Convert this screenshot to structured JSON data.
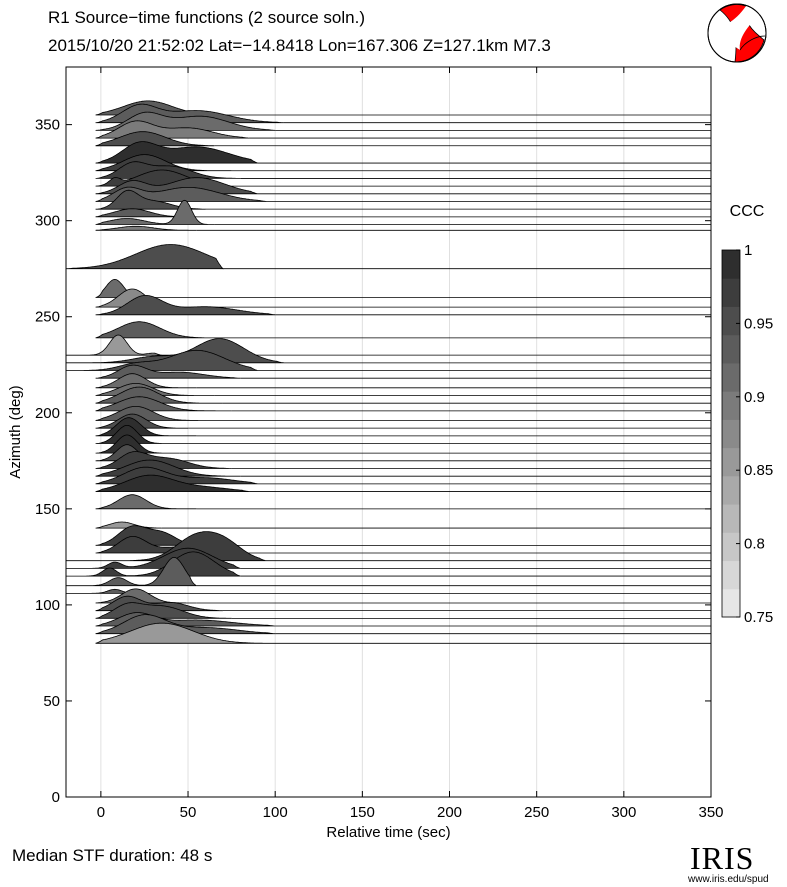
{
  "header": {
    "title": "R1 Source−time functions (2 source soln.)",
    "event": "2015/10/20 21:52:02   Lat=−14.8418 Lon=167.306   Z=127.1km   M7.3"
  },
  "footer": {
    "median": "Median STF duration: 48 s",
    "logo": "IRIS",
    "url": "www.iris.edu/spud"
  },
  "colors": {
    "ccc_low": "#e6e6e6",
    "ccc_high": "#2e2e2e",
    "grid": "#e0e0e0",
    "axis": "#000000"
  },
  "chart_data": {
    "type": "area",
    "xlabel": "Relative time (sec)",
    "ylabel": "Azimuth (deg)",
    "xlim": [
      -20,
      350
    ],
    "ylim": [
      0,
      380
    ],
    "xticks": [
      0,
      50,
      100,
      150,
      200,
      250,
      300,
      350
    ],
    "yticks": [
      0,
      50,
      100,
      150,
      200,
      250,
      300,
      350
    ],
    "grid": "vertical",
    "colorbar": {
      "label": "CCC",
      "range": [
        0.75,
        1.0
      ],
      "ticks": [
        0.75,
        0.8,
        0.85,
        0.9,
        0.95,
        1
      ],
      "tick_labels": [
        "0.75",
        "0.8",
        "0.85",
        "0.9",
        "0.95",
        "1"
      ],
      "steps": 13
    },
    "traces": [
      {
        "azimuth": 355,
        "ccc": 0.93,
        "t0": -3,
        "t1": 60,
        "bumps": [
          [
            27,
            7,
            14
          ]
        ]
      },
      {
        "azimuth": 351,
        "ccc": 0.93,
        "t0": -3,
        "t1": 105,
        "bumps": [
          [
            22,
            8,
            10
          ],
          [
            55,
            6,
            18
          ]
        ]
      },
      {
        "azimuth": 347,
        "ccc": 0.91,
        "t0": -3,
        "t1": 100,
        "bumps": [
          [
            25,
            8,
            10
          ],
          [
            57,
            7,
            16
          ]
        ]
      },
      {
        "azimuth": 343,
        "ccc": 0.9,
        "t0": -3,
        "t1": 85,
        "bumps": [
          [
            20,
            8,
            10
          ],
          [
            50,
            5,
            14
          ]
        ]
      },
      {
        "azimuth": 339,
        "ccc": 0.95,
        "t0": -3,
        "t1": 65,
        "bumps": [
          [
            24,
            7,
            13
          ]
        ]
      },
      {
        "azimuth": 330,
        "ccc": 0.99,
        "t0": -3,
        "t1": 90,
        "bumps": [
          [
            22,
            9,
            10
          ],
          [
            55,
            8,
            18
          ]
        ]
      },
      {
        "azimuth": 326,
        "ccc": 0.97,
        "t0": -3,
        "t1": 75,
        "bumps": [
          [
            25,
            8,
            12
          ]
        ]
      },
      {
        "azimuth": 322,
        "ccc": 0.98,
        "t0": -3,
        "t1": 80,
        "bumps": [
          [
            18,
            7,
            8
          ],
          [
            40,
            6,
            12
          ]
        ]
      },
      {
        "azimuth": 318,
        "ccc": 0.97,
        "t0": -3,
        "t1": 75,
        "bumps": [
          [
            8,
            3,
            3
          ],
          [
            35,
            8,
            14
          ]
        ]
      },
      {
        "azimuth": 314,
        "ccc": 0.95,
        "t0": -3,
        "t1": 90,
        "bumps": [
          [
            18,
            6,
            8
          ],
          [
            55,
            8,
            16
          ]
        ]
      },
      {
        "azimuth": 310,
        "ccc": 0.94,
        "t0": -3,
        "t1": 95,
        "bumps": [
          [
            15,
            6,
            8
          ],
          [
            50,
            7,
            18
          ]
        ]
      },
      {
        "azimuth": 306,
        "ccc": 0.95,
        "t0": -3,
        "t1": 60,
        "bumps": [
          [
            15,
            8,
            6
          ],
          [
            30,
            4,
            10
          ]
        ]
      },
      {
        "azimuth": 302,
        "ccc": 0.93,
        "t0": -3,
        "t1": 55,
        "bumps": [
          [
            18,
            4,
            10
          ]
        ]
      },
      {
        "azimuth": 298,
        "ccc": 0.92,
        "t0": -3,
        "t1": 65,
        "bumps": [
          [
            15,
            3,
            10
          ],
          [
            48,
            12,
            4
          ]
        ]
      },
      {
        "azimuth": 295,
        "ccc": 0.9,
        "t0": -3,
        "t1": 55,
        "bumps": [
          [
            20,
            2,
            10
          ]
        ]
      },
      {
        "azimuth": 275,
        "ccc": 0.96,
        "t0": -20,
        "t1": 70,
        "bumps": [
          [
            40,
            12,
            20
          ]
        ]
      },
      {
        "azimuth": 260,
        "ccc": 0.91,
        "t0": -3,
        "t1": 25,
        "bumps": [
          [
            8,
            9,
            5
          ]
        ]
      },
      {
        "azimuth": 255,
        "ccc": 0.87,
        "t0": -3,
        "t1": 45,
        "bumps": [
          [
            18,
            9,
            8
          ]
        ]
      },
      {
        "azimuth": 251,
        "ccc": 0.95,
        "t0": -3,
        "t1": 100,
        "bumps": [
          [
            25,
            9,
            10
          ],
          [
            60,
            4,
            18
          ]
        ]
      },
      {
        "azimuth": 239,
        "ccc": 0.93,
        "t0": -3,
        "t1": 60,
        "bumps": [
          [
            22,
            8,
            12
          ]
        ]
      },
      {
        "azimuth": 230,
        "ccc": 0.86,
        "t0": -20,
        "t1": 35,
        "bumps": [
          [
            10,
            10,
            5
          ],
          [
            30,
            1,
            4
          ]
        ]
      },
      {
        "azimuth": 226,
        "ccc": 0.95,
        "t0": -20,
        "t1": 105,
        "bumps": [
          [
            30,
            3,
            12
          ],
          [
            68,
            12,
            14
          ]
        ]
      },
      {
        "azimuth": 222,
        "ccc": 0.96,
        "t0": -20,
        "t1": 90,
        "bumps": [
          [
            20,
            3,
            10
          ],
          [
            55,
            10,
            16
          ]
        ]
      },
      {
        "azimuth": 218,
        "ccc": 0.93,
        "t0": -3,
        "t1": 80,
        "bumps": [
          [
            18,
            6,
            8
          ],
          [
            45,
            3,
            14
          ]
        ]
      },
      {
        "azimuth": 213,
        "ccc": 0.92,
        "t0": -3,
        "t1": 55,
        "bumps": [
          [
            18,
            7,
            8
          ]
        ]
      },
      {
        "azimuth": 209,
        "ccc": 0.92,
        "t0": -3,
        "t1": 65,
        "bumps": [
          [
            20,
            6,
            10
          ]
        ]
      },
      {
        "azimuth": 205,
        "ccc": 0.94,
        "t0": -3,
        "t1": 70,
        "bumps": [
          [
            22,
            8,
            11
          ]
        ]
      },
      {
        "azimuth": 201,
        "ccc": 0.93,
        "t0": -3,
        "t1": 75,
        "bumps": [
          [
            22,
            7,
            12
          ]
        ]
      },
      {
        "azimuth": 196,
        "ccc": 0.94,
        "t0": -3,
        "t1": 60,
        "bumps": [
          [
            20,
            7,
            10
          ]
        ]
      },
      {
        "azimuth": 192,
        "ccc": 0.95,
        "t0": -3,
        "t1": 50,
        "bumps": [
          [
            18,
            7,
            8
          ]
        ]
      },
      {
        "azimuth": 188,
        "ccc": 0.99,
        "t0": -3,
        "t1": 55,
        "bumps": [
          [
            16,
            9,
            7
          ]
        ]
      },
      {
        "azimuth": 184,
        "ccc": 0.99,
        "t0": -3,
        "t1": 50,
        "bumps": [
          [
            15,
            9,
            6
          ]
        ]
      },
      {
        "azimuth": 179,
        "ccc": 1.0,
        "t0": -3,
        "t1": 45,
        "bumps": [
          [
            15,
            9,
            6
          ]
        ]
      },
      {
        "azimuth": 175,
        "ccc": 0.96,
        "t0": -3,
        "t1": 50,
        "bumps": [
          [
            15,
            8,
            6
          ]
        ]
      },
      {
        "azimuth": 171,
        "ccc": 0.97,
        "t0": -3,
        "t1": 75,
        "bumps": [
          [
            18,
            7,
            8
          ],
          [
            38,
            5,
            12
          ]
        ]
      },
      {
        "azimuth": 167,
        "ccc": 0.98,
        "t0": -3,
        "t1": 80,
        "bumps": [
          [
            28,
            8,
            14
          ]
        ]
      },
      {
        "azimuth": 163,
        "ccc": 0.98,
        "t0": -3,
        "t1": 90,
        "bumps": [
          [
            25,
            8,
            12
          ],
          [
            60,
            3,
            16
          ]
        ]
      },
      {
        "azimuth": 159,
        "ccc": 0.99,
        "t0": -3,
        "t1": 85,
        "bumps": [
          [
            28,
            8,
            14
          ],
          [
            60,
            2,
            14
          ]
        ]
      },
      {
        "azimuth": 150,
        "ccc": 0.92,
        "t0": -3,
        "t1": 55,
        "bumps": [
          [
            18,
            7,
            8
          ]
        ]
      },
      {
        "azimuth": 140,
        "ccc": 0.86,
        "t0": -3,
        "t1": 35,
        "bumps": [
          [
            12,
            3,
            7
          ]
        ]
      },
      {
        "azimuth": 131,
        "ccc": 0.98,
        "t0": -3,
        "t1": 55,
        "bumps": [
          [
            18,
            9,
            8
          ],
          [
            35,
            6,
            8
          ]
        ]
      },
      {
        "azimuth": 127,
        "ccc": 0.98,
        "t0": -3,
        "t1": 75,
        "bumps": [
          [
            18,
            8,
            8
          ],
          [
            45,
            3,
            12
          ]
        ]
      },
      {
        "azimuth": 123,
        "ccc": 0.98,
        "t0": -20,
        "t1": 95,
        "bumps": [
          [
            55,
            12,
            12
          ],
          [
            72,
            7,
            10
          ]
        ]
      },
      {
        "azimuth": 119,
        "ccc": 0.97,
        "t0": -20,
        "t1": 80,
        "bumps": [
          [
            8,
            3,
            4
          ],
          [
            50,
            10,
            14
          ]
        ]
      },
      {
        "azimuth": 115,
        "ccc": 0.97,
        "t0": -20,
        "t1": 80,
        "bumps": [
          [
            5,
            4,
            4
          ],
          [
            53,
            12,
            12
          ]
        ]
      },
      {
        "azimuth": 110,
        "ccc": 0.94,
        "t0": -20,
        "t1": 55,
        "bumps": [
          [
            10,
            4,
            5
          ],
          [
            42,
            14,
            6
          ]
        ]
      },
      {
        "azimuth": 106,
        "ccc": 0.93,
        "t0": -20,
        "t1": 30,
        "bumps": [
          [
            8,
            2,
            4
          ]
        ]
      },
      {
        "azimuth": 101,
        "ccc": 0.92,
        "t0": -3,
        "t1": 55,
        "bumps": [
          [
            20,
            7,
            8
          ]
        ]
      },
      {
        "azimuth": 97,
        "ccc": 0.95,
        "t0": -3,
        "t1": 70,
        "bumps": [
          [
            15,
            7,
            8
          ],
          [
            40,
            4,
            10
          ]
        ]
      },
      {
        "azimuth": 93,
        "ccc": 0.95,
        "t0": -3,
        "t1": 75,
        "bumps": [
          [
            15,
            6,
            8
          ],
          [
            35,
            6,
            12
          ]
        ]
      },
      {
        "azimuth": 89,
        "ccc": 0.94,
        "t0": -3,
        "t1": 100,
        "bumps": [
          [
            20,
            6,
            10
          ],
          [
            55,
            3,
            20
          ]
        ]
      },
      {
        "azimuth": 85,
        "ccc": 0.94,
        "t0": -3,
        "t1": 100,
        "bumps": [
          [
            25,
            9,
            12
          ],
          [
            60,
            3,
            18
          ]
        ]
      },
      {
        "azimuth": 80,
        "ccc": 0.85,
        "t0": -3,
        "t1": 95,
        "bumps": [
          [
            35,
            10,
            18
          ]
        ]
      }
    ]
  }
}
